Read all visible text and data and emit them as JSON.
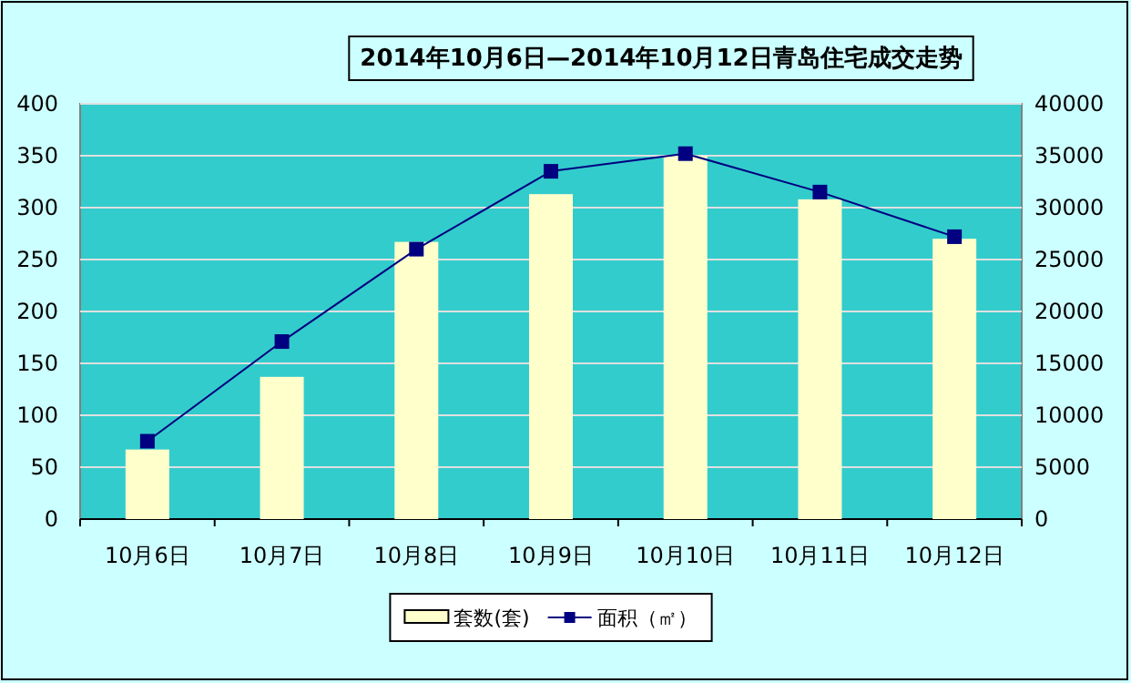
{
  "chart_data": {
    "type": "bar",
    "title": "2014年10月6日—2014年10月12日青岛住宅成交走势",
    "categories": [
      "10月6日",
      "10月7日",
      "10月8日",
      "10月9日",
      "10月10日",
      "10月11日",
      "10月12日"
    ],
    "series": [
      {
        "name": "套数(套)",
        "color": "#ffffcc",
        "values": [
          67,
          137,
          267,
          313,
          350,
          308,
          270
        ]
      },
      {
        "name": "面积（㎡）",
        "type": "line",
        "axis": "y2",
        "color": "#000080",
        "values": [
          7500,
          17100,
          26000,
          33500,
          35200,
          31500,
          27200
        ]
      }
    ],
    "ylim": [
      0,
      400
    ],
    "yticks": [
      0,
      50,
      100,
      150,
      200,
      250,
      300,
      350,
      400
    ],
    "y2lim": [
      0,
      40000
    ],
    "y2ticks": [
      0,
      5000,
      10000,
      15000,
      20000,
      25000,
      30000,
      35000,
      40000
    ],
    "grid": "y",
    "legend": "bottom",
    "marker": "square"
  }
}
